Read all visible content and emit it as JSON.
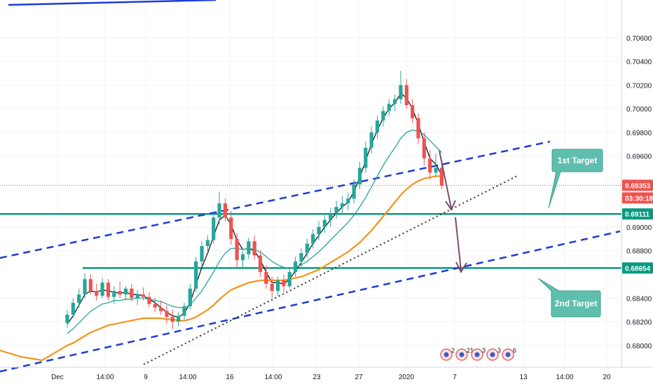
{
  "chart_data": {
    "type": "candlestick",
    "grid": true,
    "price_axis": {
      "ticks": [
        "0.70600",
        "0.70400",
        "0.70200",
        "0.70000",
        "0.69800",
        "0.69600",
        "0.69000",
        "0.68800",
        "0.68400",
        "0.68200",
        "0.68000"
      ],
      "tick_values": [
        0.706,
        0.704,
        0.702,
        0.7,
        0.698,
        0.696,
        0.69,
        0.688,
        0.684,
        0.682,
        0.68
      ],
      "range": [
        0.6791,
        0.708
      ]
    },
    "time_axis": {
      "labels": [
        "Dec",
        "14:00",
        "9",
        "14:00",
        "16",
        "14:00",
        "23",
        "27",
        "2020",
        "7",
        "13",
        "14:00",
        "20"
      ]
    },
    "price_tags": [
      {
        "text": "0.69353",
        "value": 0.69353,
        "color": "#ef5350",
        "kind": "last-price"
      },
      {
        "text": "03:30:18",
        "value": 0.69285,
        "color": "#ef5350",
        "kind": "countdown"
      },
      {
        "text": "0.69111",
        "value": 0.69111,
        "color": "#089981",
        "kind": "level"
      },
      {
        "text": "0.68654",
        "value": 0.68654,
        "color": "#089981",
        "kind": "level"
      }
    ],
    "horizontal_levels": [
      {
        "value": 0.69111,
        "color": "#089981"
      },
      {
        "value": 0.68654,
        "color": "#089981"
      }
    ],
    "annotations": [
      {
        "text": "1st Target",
        "color": "#5fbfae"
      },
      {
        "text": "2nd Target",
        "color": "#5fbfae"
      }
    ],
    "event_markers": [
      "2",
      "21",
      "3",
      "3",
      "6"
    ],
    "candles": [
      [
        0.6819,
        0.683,
        0.6815,
        0.6826
      ],
      [
        0.6826,
        0.684,
        0.6823,
        0.6836
      ],
      [
        0.6836,
        0.6848,
        0.6832,
        0.6843
      ],
      [
        0.6843,
        0.6861,
        0.684,
        0.6856
      ],
      [
        0.6856,
        0.686,
        0.6843,
        0.6846
      ],
      [
        0.6846,
        0.6852,
        0.6838,
        0.6842
      ],
      [
        0.6842,
        0.6857,
        0.684,
        0.6853
      ],
      [
        0.6853,
        0.6856,
        0.6838,
        0.6841
      ],
      [
        0.6841,
        0.685,
        0.6835,
        0.6846
      ],
      [
        0.6846,
        0.6854,
        0.684,
        0.6843
      ],
      [
        0.6843,
        0.685,
        0.6838,
        0.6848
      ],
      [
        0.6848,
        0.6852,
        0.6837,
        0.684
      ],
      [
        0.684,
        0.6847,
        0.6834,
        0.6843
      ],
      [
        0.6843,
        0.6849,
        0.6838,
        0.6841
      ],
      [
        0.6841,
        0.6845,
        0.6832,
        0.6835
      ],
      [
        0.6835,
        0.684,
        0.6828,
        0.6832
      ],
      [
        0.6832,
        0.6838,
        0.6826,
        0.6829
      ],
      [
        0.6829,
        0.6834,
        0.6818,
        0.6824
      ],
      [
        0.6824,
        0.683,
        0.6814,
        0.682
      ],
      [
        0.682,
        0.6828,
        0.6816,
        0.6825
      ],
      [
        0.6825,
        0.6836,
        0.6822,
        0.6833
      ],
      [
        0.6833,
        0.6852,
        0.683,
        0.6848
      ],
      [
        0.6848,
        0.6875,
        0.6845,
        0.6871
      ],
      [
        0.6871,
        0.6888,
        0.6866,
        0.6884
      ],
      [
        0.6884,
        0.6893,
        0.6878,
        0.6889
      ],
      [
        0.6889,
        0.6912,
        0.6886,
        0.6908
      ],
      [
        0.6908,
        0.693,
        0.6902,
        0.692
      ],
      [
        0.692,
        0.6924,
        0.6905,
        0.6908
      ],
      [
        0.6908,
        0.6914,
        0.6885,
        0.689
      ],
      [
        0.689,
        0.6895,
        0.6866,
        0.6872
      ],
      [
        0.6872,
        0.688,
        0.6864,
        0.6877
      ],
      [
        0.6877,
        0.6891,
        0.6873,
        0.6888
      ],
      [
        0.6888,
        0.6893,
        0.6872,
        0.6876
      ],
      [
        0.6876,
        0.688,
        0.6858,
        0.6862
      ],
      [
        0.6862,
        0.6868,
        0.6848,
        0.6852
      ],
      [
        0.6852,
        0.6858,
        0.684,
        0.6846
      ],
      [
        0.6846,
        0.6858,
        0.6842,
        0.6855
      ],
      [
        0.6855,
        0.686,
        0.6845,
        0.685
      ],
      [
        0.685,
        0.6865,
        0.6848,
        0.6862
      ],
      [
        0.6862,
        0.6875,
        0.6858,
        0.6871
      ],
      [
        0.6871,
        0.6882,
        0.6866,
        0.6878
      ],
      [
        0.6878,
        0.689,
        0.6874,
        0.6886
      ],
      [
        0.6886,
        0.6898,
        0.6882,
        0.6894
      ],
      [
        0.6894,
        0.6905,
        0.6889,
        0.69
      ],
      [
        0.69,
        0.691,
        0.6895,
        0.6906
      ],
      [
        0.6906,
        0.6916,
        0.69,
        0.6911
      ],
      [
        0.6911,
        0.6922,
        0.6907,
        0.6917
      ],
      [
        0.6917,
        0.6926,
        0.6911,
        0.692
      ],
      [
        0.692,
        0.6929,
        0.6914,
        0.6924
      ],
      [
        0.6924,
        0.694,
        0.692,
        0.6936
      ],
      [
        0.6936,
        0.6955,
        0.6932,
        0.695
      ],
      [
        0.695,
        0.6972,
        0.6946,
        0.6967
      ],
      [
        0.6967,
        0.6985,
        0.6962,
        0.698
      ],
      [
        0.698,
        0.6994,
        0.6975,
        0.699
      ],
      [
        0.699,
        0.7002,
        0.6985,
        0.6998
      ],
      [
        0.6998,
        0.7008,
        0.6994,
        0.7004
      ],
      [
        0.7004,
        0.7012,
        0.6998,
        0.7008
      ],
      [
        0.7008,
        0.7032,
        0.7004,
        0.702
      ],
      [
        0.702,
        0.7025,
        0.7,
        0.7003
      ],
      [
        0.7003,
        0.7008,
        0.6988,
        0.6992
      ],
      [
        0.6992,
        0.6996,
        0.697,
        0.6975
      ],
      [
        0.6975,
        0.698,
        0.6952,
        0.6958
      ],
      [
        0.6958,
        0.6965,
        0.694,
        0.6946
      ],
      [
        0.6946,
        0.6962,
        0.6942,
        0.695
      ],
      [
        0.695,
        0.6955,
        0.6932,
        0.6935
      ]
    ],
    "series": [
      {
        "color": "#131722",
        "values": [
          0.6818,
          0.6825,
          0.6834,
          0.6843,
          0.6846,
          0.6845,
          0.6847,
          0.6846,
          0.6845,
          0.6844,
          0.6845,
          0.6843,
          0.6843,
          0.6842,
          0.6839,
          0.6836,
          0.6832,
          0.6828,
          0.6825,
          0.6824,
          0.6827,
          0.6836,
          0.6851,
          0.6866,
          0.6878,
          0.6892,
          0.6906,
          0.691,
          0.6902,
          0.6889,
          0.6881,
          0.6882,
          0.688,
          0.6872,
          0.6862,
          0.6853,
          0.6853,
          0.6852,
          0.6856,
          0.6863,
          0.687,
          0.6878,
          0.6886,
          0.6893,
          0.69,
          0.6906,
          0.6912,
          0.6917,
          0.6921,
          0.693,
          0.6942,
          0.6956,
          0.697,
          0.6982,
          0.6992,
          0.7,
          0.7005,
          0.7013,
          0.7009,
          0.7,
          0.6987,
          0.6972,
          0.6958,
          0.6953,
          0.6944
        ]
      },
      {
        "color": "#26a69a",
        "values": [
          0.681,
          0.6814,
          0.6819,
          0.6824,
          0.6829,
          0.6832,
          0.6835,
          0.6836,
          0.6838,
          0.6838,
          0.6839,
          0.6839,
          0.684,
          0.684,
          0.6839,
          0.6838,
          0.6837,
          0.6835,
          0.6833,
          0.6832,
          0.6832,
          0.6834,
          0.684,
          0.6846,
          0.6854,
          0.6862,
          0.6871,
          0.6878,
          0.6882,
          0.6882,
          0.6881,
          0.6882,
          0.6881,
          0.6879,
          0.6875,
          0.6871,
          0.6868,
          0.6866,
          0.6865,
          0.6866,
          0.6868,
          0.6871,
          0.6875,
          0.6879,
          0.6884,
          0.6889,
          0.6894,
          0.6899,
          0.6904,
          0.691,
          0.6917,
          0.6925,
          0.6934,
          0.6943,
          0.6952,
          0.696,
          0.6967,
          0.6975,
          0.698,
          0.6982,
          0.6981,
          0.6978,
          0.6973,
          0.6968,
          0.6963
        ]
      },
      {
        "color": "#f7931a",
        "values": [
          0.68,
          0.6802,
          0.6805,
          0.6808,
          0.6811,
          0.6813,
          0.6815,
          0.6817,
          0.6818,
          0.6819,
          0.682,
          0.6821,
          0.6822,
          0.6823,
          0.6823,
          0.6823,
          0.6823,
          0.6822,
          0.6822,
          0.6821,
          0.6821,
          0.6822,
          0.6824,
          0.6827,
          0.683,
          0.6834,
          0.6839,
          0.6843,
          0.6847,
          0.6849,
          0.6851,
          0.6853,
          0.6854,
          0.6855,
          0.6855,
          0.6855,
          0.6855,
          0.6855,
          0.6856,
          0.6857,
          0.6858,
          0.686,
          0.6862,
          0.6864,
          0.6867,
          0.687,
          0.6873,
          0.6876,
          0.6879,
          0.6883,
          0.6887,
          0.6892,
          0.6897,
          0.6903,
          0.6909,
          0.6915,
          0.6921,
          0.6927,
          0.6932,
          0.6936,
          0.6939,
          0.6941,
          0.6942,
          0.6943,
          0.6943
        ]
      }
    ]
  }
}
